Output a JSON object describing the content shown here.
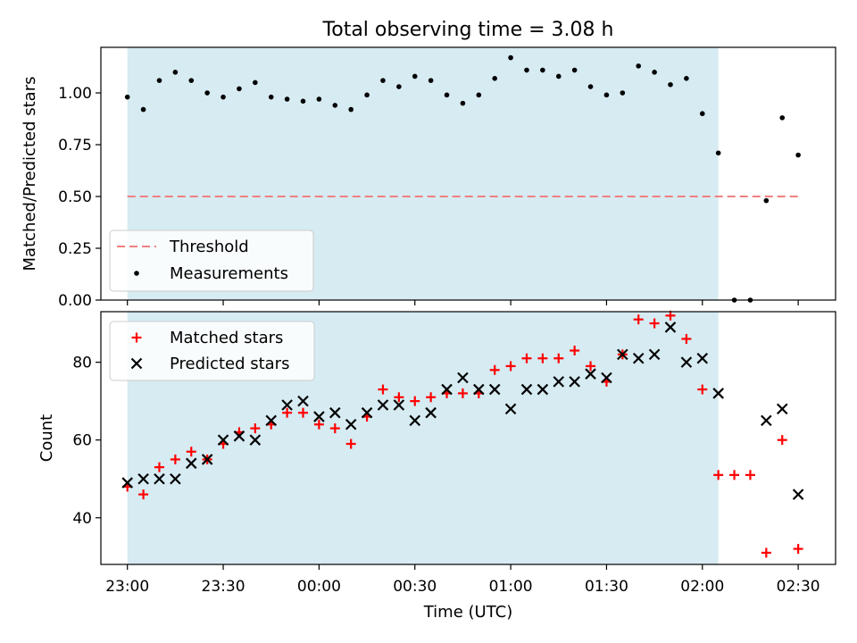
{
  "chart_data": [
    {
      "type": "scatter",
      "title": "Total observing time = 3.08 h",
      "xlabel": "",
      "ylabel": "Matched/Predicted stars",
      "ylim": [
        0,
        1.22
      ],
      "yticks": [
        "0.00",
        "0.25",
        "0.50",
        "0.75",
        "1.00"
      ],
      "threshold": 0.5,
      "threshold_color": "#f08080",
      "marker_color": "#000000",
      "observing_span_color": "#add8e6",
      "legend": {
        "position": "lower-left",
        "threshold_label": "Threshold",
        "measurements_label": "Measurements"
      },
      "x_minutes": [
        0,
        5,
        10,
        15,
        20,
        25,
        30,
        35,
        40,
        45,
        50,
        55,
        60,
        65,
        70,
        75,
        80,
        85,
        90,
        95,
        100,
        105,
        110,
        115,
        120,
        125,
        130,
        135,
        140,
        145,
        150,
        155,
        160,
        165,
        170,
        175,
        180,
        185,
        190,
        195,
        200,
        205,
        210
      ],
      "ratio": [
        0.98,
        0.92,
        1.06,
        1.1,
        1.06,
        1.0,
        0.98,
        1.02,
        1.05,
        0.98,
        0.97,
        0.96,
        0.97,
        0.94,
        0.92,
        0.99,
        1.06,
        1.03,
        1.08,
        1.06,
        0.99,
        0.95,
        0.99,
        1.07,
        1.17,
        1.11,
        1.11,
        1.08,
        1.11,
        1.03,
        0.99,
        1.0,
        1.13,
        1.1,
        1.04,
        1.07,
        0.9,
        0.71,
        0.0,
        0.0,
        0.48,
        0.88,
        0.7
      ]
    },
    {
      "type": "scatter",
      "xlabel": "Time (UTC)",
      "ylabel": "Count",
      "ylim": [
        28,
        93
      ],
      "yticks": [
        40,
        60,
        80
      ],
      "xticks": [
        "23:00",
        "23:30",
        "00:00",
        "00:30",
        "01:00",
        "01:30",
        "02:00",
        "02:30"
      ],
      "observing_span_minutes": [
        0,
        185
      ],
      "legend": {
        "position": "upper-left"
      },
      "series": [
        {
          "name": "Matched stars",
          "marker": "plus",
          "color": "#ff0000",
          "x_minutes": [
            0,
            5,
            10,
            15,
            20,
            25,
            30,
            35,
            40,
            45,
            50,
            55,
            60,
            65,
            70,
            75,
            80,
            85,
            90,
            95,
            100,
            105,
            110,
            115,
            120,
            125,
            130,
            135,
            140,
            145,
            150,
            155,
            160,
            165,
            170,
            175,
            180,
            185,
            190,
            195,
            200,
            205,
            210
          ],
          "values": [
            48,
            46,
            53,
            55,
            57,
            55,
            59,
            62,
            63,
            64,
            67,
            67,
            64,
            63,
            59,
            66,
            73,
            71,
            70,
            71,
            72,
            72,
            72,
            78,
            79,
            81,
            81,
            81,
            83,
            79,
            75,
            82,
            91,
            90,
            92,
            86,
            73,
            51,
            51,
            51,
            31,
            60,
            32
          ]
        },
        {
          "name": "Predicted stars",
          "marker": "x",
          "color": "#000000",
          "x_minutes": [
            0,
            5,
            10,
            15,
            20,
            25,
            30,
            35,
            40,
            45,
            50,
            55,
            60,
            65,
            70,
            75,
            80,
            85,
            90,
            95,
            100,
            105,
            110,
            115,
            120,
            125,
            130,
            135,
            140,
            145,
            150,
            155,
            160,
            165,
            170,
            175,
            180,
            185,
            200,
            205,
            210
          ],
          "values": [
            49,
            50,
            50,
            50,
            54,
            55,
            60,
            61,
            60,
            65,
            69,
            70,
            66,
            67,
            64,
            67,
            69,
            69,
            65,
            67,
            73,
            76,
            73,
            73,
            68,
            73,
            73,
            75,
            75,
            77,
            76,
            82,
            81,
            82,
            89,
            80,
            81,
            72,
            65,
            68,
            46
          ]
        }
      ]
    }
  ]
}
